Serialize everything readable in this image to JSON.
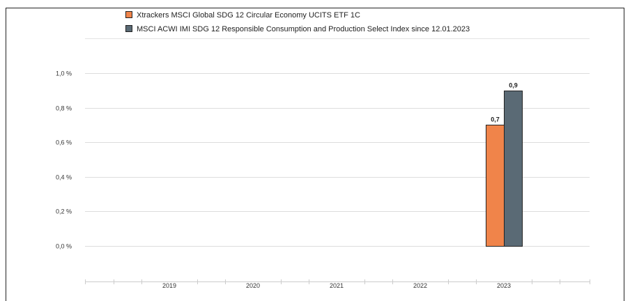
{
  "chart_data": {
    "type": "bar",
    "categories": [
      "2019",
      "2020",
      "2021",
      "2022",
      "2023"
    ],
    "series": [
      {
        "name": "Xtrackers MSCI Global SDG 12 Circular Economy UCITS ETF 1C",
        "color": "#f0844a",
        "values": [
          null,
          null,
          null,
          null,
          0.7
        ],
        "labels": [
          "",
          "",
          "",
          "",
          "0,7"
        ]
      },
      {
        "name": "MSCI ACWI IMI SDG 12 Responsible Consumption and Production Select Index since 12.01.2023",
        "color": "#5a6a75",
        "values": [
          null,
          null,
          null,
          null,
          0.9
        ],
        "labels": [
          "",
          "",
          "",
          "",
          "0,9"
        ]
      }
    ],
    "yticks": [
      {
        "value": 0.0,
        "label": "0,0 %"
      },
      {
        "value": 0.2,
        "label": "0,2 %"
      },
      {
        "value": 0.4,
        "label": "0,4 %"
      },
      {
        "value": 0.6,
        "label": "0,6 %"
      },
      {
        "value": 0.8,
        "label": "0,8 %"
      },
      {
        "value": 1.0,
        "label": "1,0 %"
      }
    ],
    "ylim": [
      0,
      1.2
    ],
    "grid": true,
    "legend_position": "top"
  }
}
